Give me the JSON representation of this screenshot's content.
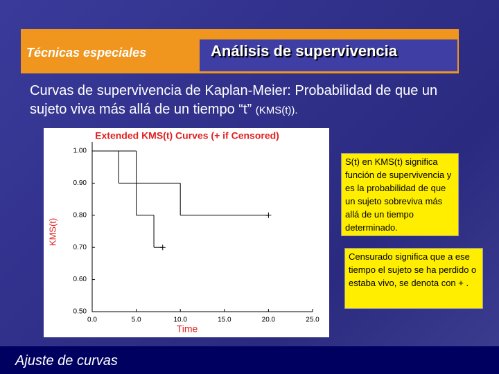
{
  "header": {
    "section": "Técnicas especiales",
    "title": "Análisis de supervivencia"
  },
  "body": {
    "text": "Curvas de supervivencia de Kaplan-Meier: Probabilidad de que un sujeto viva más allá de un tiempo “t”",
    "text_small": "(KMS(t))."
  },
  "chart_data": {
    "type": "step",
    "title": "Extended KMS(t) Curves (+ if Censored)",
    "x_label": "Time",
    "y_label": "KMS(t)",
    "xlim": [
      0,
      25
    ],
    "xticks": [
      {
        "value": 0,
        "label": "0.0"
      },
      {
        "value": 5,
        "label": "5.0"
      },
      {
        "value": 10,
        "label": "10.0"
      },
      {
        "value": 15,
        "label": "15.0"
      },
      {
        "value": 20,
        "label": "20.0"
      },
      {
        "value": 25,
        "label": "25.0"
      }
    ],
    "ylim": [
      0.5,
      1.0
    ],
    "yticks": [
      {
        "value": 0.5,
        "label": "0.50"
      },
      {
        "value": 0.6,
        "label": "0.60"
      },
      {
        "value": 0.7,
        "label": "0.70"
      },
      {
        "value": 0.8,
        "label": "0.80"
      },
      {
        "value": 0.9,
        "label": "0.90"
      },
      {
        "value": 1.0,
        "label": "1.00"
      }
    ],
    "series": [
      {
        "color": "#000000",
        "x": [
          0,
          3,
          10,
          20
        ],
        "values": [
          1.0,
          0.9,
          0.8,
          0.8
        ],
        "censored": true
      },
      {
        "color": "#000000",
        "x": [
          0,
          5,
          7,
          8
        ],
        "values": [
          1.0,
          0.8,
          0.7,
          0.7
        ],
        "censored": true
      }
    ]
  },
  "notes": [
    "S(t) en KMS(t) significa función de supervivencia y es la probabilidad de que un sujeto sobreviva más allá de un tiempo determinado.",
    "Censurado significa que a ese tiempo el sujeto se ha perdido o estaba vivo, se denota con + ."
  ],
  "footer": {
    "text": "Ajuste de curvas"
  }
}
